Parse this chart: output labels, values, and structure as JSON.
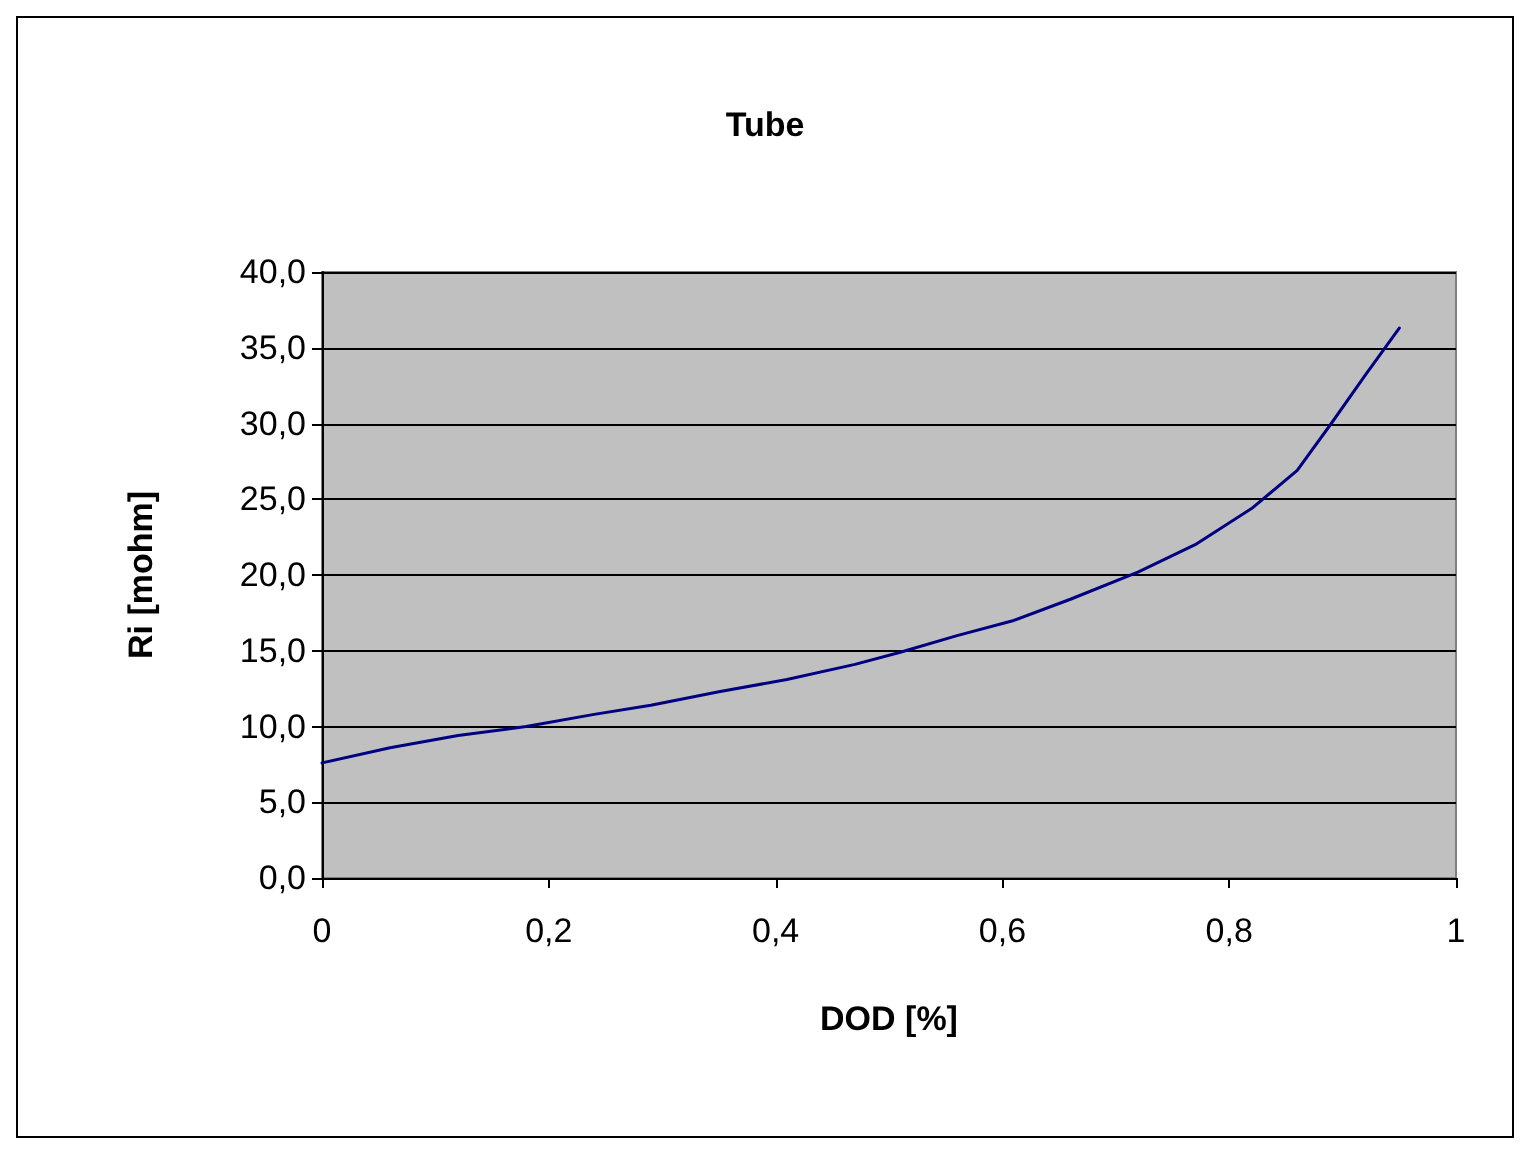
{
  "chart_data": {
    "type": "line",
    "title": "Tube",
    "xlabel": "DOD [%]",
    "ylabel": "Ri [mohm]",
    "x": [
      0,
      0.06,
      0.12,
      0.18,
      0.24,
      0.29,
      0.35,
      0.41,
      0.47,
      0.51,
      0.56,
      0.61,
      0.66,
      0.72,
      0.77,
      0.82,
      0.86,
      0.89,
      0.92,
      0.95
    ],
    "series": [
      {
        "color": "#000080",
        "values": [
          7.6,
          8.6,
          9.4,
          10.0,
          10.8,
          11.4,
          12.3,
          13.1,
          14.1,
          14.9,
          16.0,
          17.0,
          18.4,
          20.2,
          22.0,
          24.4,
          26.9,
          30.0,
          33.2,
          36.3
        ]
      }
    ],
    "xlim": [
      0,
      1
    ],
    "xticks": [
      {
        "value": 0,
        "label": "0"
      },
      {
        "value": 0.2,
        "label": "0,2"
      },
      {
        "value": 0.4,
        "label": "0,4"
      },
      {
        "value": 0.6,
        "label": "0,6"
      },
      {
        "value": 0.8,
        "label": "0,8"
      },
      {
        "value": 1,
        "label": "1"
      }
    ],
    "ylim": [
      0,
      40
    ],
    "yticks": [
      {
        "value": 0,
        "label": "0,0"
      },
      {
        "value": 5,
        "label": "5,0"
      },
      {
        "value": 10,
        "label": "10,0"
      },
      {
        "value": 15,
        "label": "15,0"
      },
      {
        "value": 20,
        "label": "20,0"
      },
      {
        "value": 25,
        "label": "25,0"
      },
      {
        "value": 30,
        "label": "30,0"
      },
      {
        "value": 35,
        "label": "35,0"
      },
      {
        "value": 40,
        "label": "40,0"
      }
    ],
    "grid": "y",
    "marker": "none",
    "line_style": "solid"
  }
}
